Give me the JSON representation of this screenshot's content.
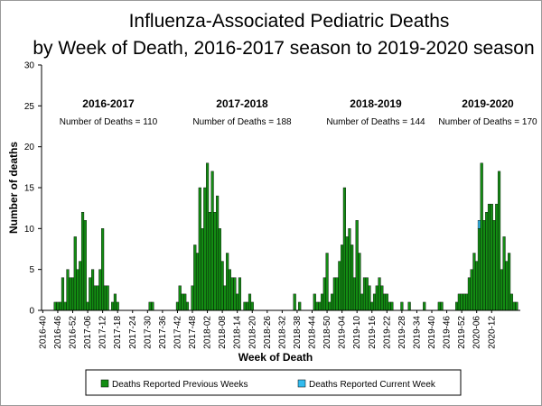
{
  "chart_data": {
    "type": "bar",
    "title_line1": "Influenza-Associated Pediatric Deaths",
    "title_line2": "by Week of Death, 2016-2017 season to 2019-2020 season",
    "ylabel": "Number of deaths",
    "xlabel": "Week of Death",
    "ylim": [
      0,
      30
    ],
    "yticks": [
      0,
      5,
      10,
      15,
      20,
      25,
      30
    ],
    "grid": false,
    "legend_position": "bottom",
    "xtick_labels": [
      "2016-40",
      "2016-46",
      "2016-52",
      "2017-06",
      "2017-12",
      "2017-18",
      "2017-24",
      "2017-30",
      "2017-36",
      "2017-42",
      "2017-48",
      "2018-02",
      "2018-08",
      "2018-14",
      "2018-20",
      "2018-26",
      "2018-32",
      "2018-38",
      "2018-44",
      "2018-50",
      "2019-04",
      "2019-10",
      "2019-16",
      "2019-22",
      "2019-28",
      "2019-34",
      "2019-40",
      "2019-46",
      "2019-52",
      "2020-06",
      "2020-12"
    ],
    "seasons": [
      {
        "label": "2016-2017",
        "count_label": "Number of Deaths = 110"
      },
      {
        "label": "2017-2018",
        "count_label": "Number of Deaths = 188"
      },
      {
        "label": "2018-2019",
        "count_label": "Number of Deaths = 144"
      },
      {
        "label": "2019-2020",
        "count_label": "Number of Deaths = 170"
      }
    ],
    "series": [
      {
        "name": "Deaths Reported Previous Weeks",
        "color": "#138c13",
        "values": [
          0,
          0,
          0,
          0,
          0,
          1,
          1,
          1,
          4,
          1,
          5,
          4,
          4,
          9,
          5,
          6,
          12,
          11,
          1,
          4,
          5,
          3,
          3,
          5,
          10,
          3,
          3,
          0,
          1,
          2,
          1,
          0,
          0,
          0,
          0,
          0,
          0,
          0,
          0,
          0,
          0,
          0,
          0,
          1,
          1,
          0,
          0,
          0,
          0,
          0,
          0,
          0,
          0,
          0,
          1,
          3,
          2,
          2,
          1,
          0,
          3,
          8,
          7,
          15,
          10,
          15,
          18,
          12,
          17,
          12,
          14,
          10,
          6,
          3,
          7,
          5,
          4,
          4,
          2,
          4,
          0,
          1,
          1,
          2,
          1,
          0,
          0,
          0,
          0,
          0,
          0,
          0,
          0,
          0,
          0,
          0,
          0,
          0,
          0,
          0,
          0,
          2,
          0,
          1,
          0,
          0,
          0,
          0,
          0,
          2,
          1,
          1,
          2,
          4,
          7,
          1,
          2,
          4,
          4,
          6,
          8,
          15,
          9,
          10,
          8,
          4,
          11,
          7,
          2,
          4,
          4,
          3,
          1,
          2,
          3,
          4,
          3,
          2,
          2,
          1,
          1,
          0,
          0,
          0,
          1,
          0,
          0,
          1,
          0,
          0,
          0,
          0,
          0,
          1,
          0,
          0,
          0,
          0,
          0,
          1,
          1,
          0,
          0,
          0,
          0,
          0,
          1,
          2,
          2,
          2,
          2,
          4,
          5,
          7,
          6,
          10,
          18,
          11,
          12,
          13,
          13,
          11,
          13,
          17,
          5,
          9,
          6,
          7,
          2,
          1,
          1,
          0
        ]
      },
      {
        "name": "Deaths Reported Current Week",
        "color": "#33bbee",
        "values": [
          0,
          0,
          0,
          0,
          0,
          0,
          0,
          0,
          0,
          0,
          0,
          0,
          0,
          0,
          0,
          0,
          0,
          0,
          0,
          0,
          0,
          0,
          0,
          0,
          0,
          0,
          0,
          0,
          0,
          0,
          0,
          0,
          0,
          0,
          0,
          0,
          0,
          0,
          0,
          0,
          0,
          0,
          0,
          0,
          0,
          0,
          0,
          0,
          0,
          0,
          0,
          0,
          0,
          0,
          0,
          0,
          0,
          0,
          0,
          0,
          0,
          0,
          0,
          0,
          0,
          0,
          0,
          0,
          0,
          0,
          0,
          0,
          0,
          0,
          0,
          0,
          0,
          0,
          0,
          0,
          0,
          0,
          0,
          0,
          0,
          0,
          0,
          0,
          0,
          0,
          0,
          0,
          0,
          0,
          0,
          0,
          0,
          0,
          0,
          0,
          0,
          0,
          0,
          0,
          0,
          0,
          0,
          0,
          0,
          0,
          0,
          0,
          0,
          0,
          0,
          0,
          0,
          0,
          0,
          0,
          0,
          0,
          0,
          0,
          0,
          0,
          0,
          0,
          0,
          0,
          0,
          0,
          0,
          0,
          0,
          0,
          0,
          0,
          0,
          0,
          0,
          0,
          0,
          0,
          0,
          0,
          0,
          0,
          0,
          0,
          0,
          0,
          0,
          0,
          0,
          0,
          0,
          0,
          0,
          0,
          0,
          0,
          0,
          0,
          0,
          0,
          0,
          0,
          0,
          0,
          0,
          0,
          0,
          0,
          0,
          1,
          0,
          0,
          0,
          0,
          0,
          0,
          0,
          0,
          0,
          0,
          0,
          0,
          0,
          0,
          0,
          0
        ]
      }
    ]
  }
}
